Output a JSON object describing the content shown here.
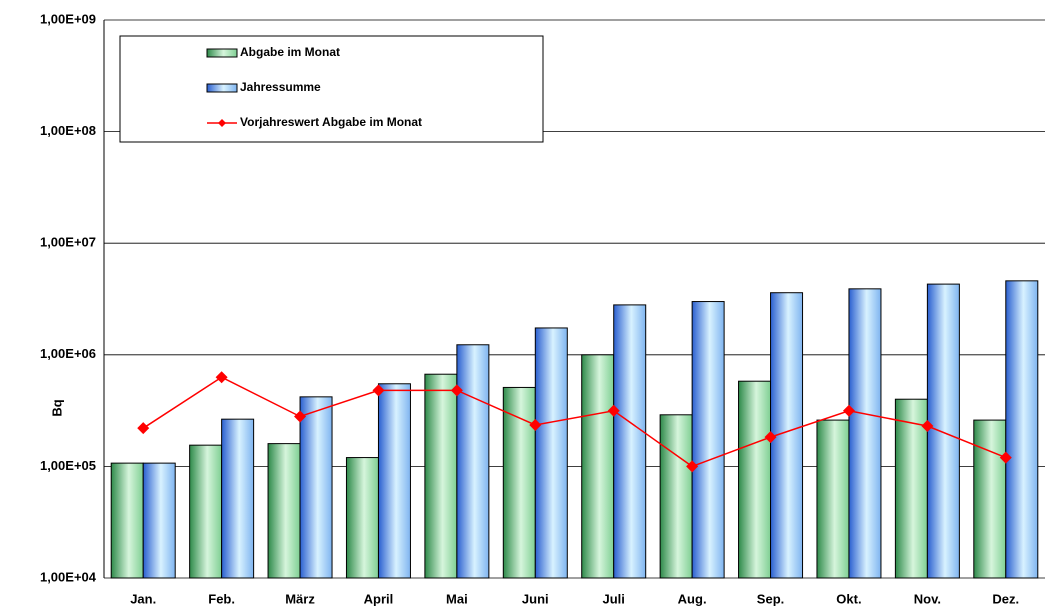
{
  "chart_data": {
    "type": "bar-line",
    "ylabel": "Bq",
    "categories": [
      "Jan.",
      "Feb.",
      "März",
      "April",
      "Mai",
      "Juni",
      "Juli",
      "Aug.",
      "Sep.",
      "Okt.",
      "Nov.",
      "Dez."
    ],
    "series": [
      {
        "name": "Abgabe im Monat",
        "type": "bar",
        "color": "#3c9a5a",
        "values": [
          107000,
          155000,
          160000,
          120000,
          670000,
          510000,
          1000000,
          290000,
          580000,
          260000,
          400000,
          260000
        ]
      },
      {
        "name": "Jahressumme",
        "type": "bar",
        "color": "#4a7fe0",
        "values": [
          107000,
          265000,
          420000,
          550000,
          1230000,
          1740000,
          2800000,
          3000000,
          3600000,
          3900000,
          4300000,
          4600000
        ]
      },
      {
        "name": "Vorjahreswert Abgabe im Monat",
        "type": "line",
        "color": "#ff0000",
        "values": [
          220000,
          630000,
          280000,
          480000,
          480000,
          235000,
          315000,
          100000,
          183000,
          315000,
          230000,
          120000
        ]
      }
    ],
    "log_scale": true,
    "grid": true,
    "legend": "top-left",
    "ylim": [
      10000,
      1000000000
    ],
    "yticks": [
      {
        "value": 10000,
        "label": "1,00E+04"
      },
      {
        "value": 100000,
        "label": "1,00E+05"
      },
      {
        "value": 1000000,
        "label": "1,00E+06"
      },
      {
        "value": 10000000,
        "label": "1,00E+07"
      },
      {
        "value": 100000000,
        "label": "1,00E+08"
      },
      {
        "value": 1000000000,
        "label": "1,00E+09"
      }
    ]
  }
}
